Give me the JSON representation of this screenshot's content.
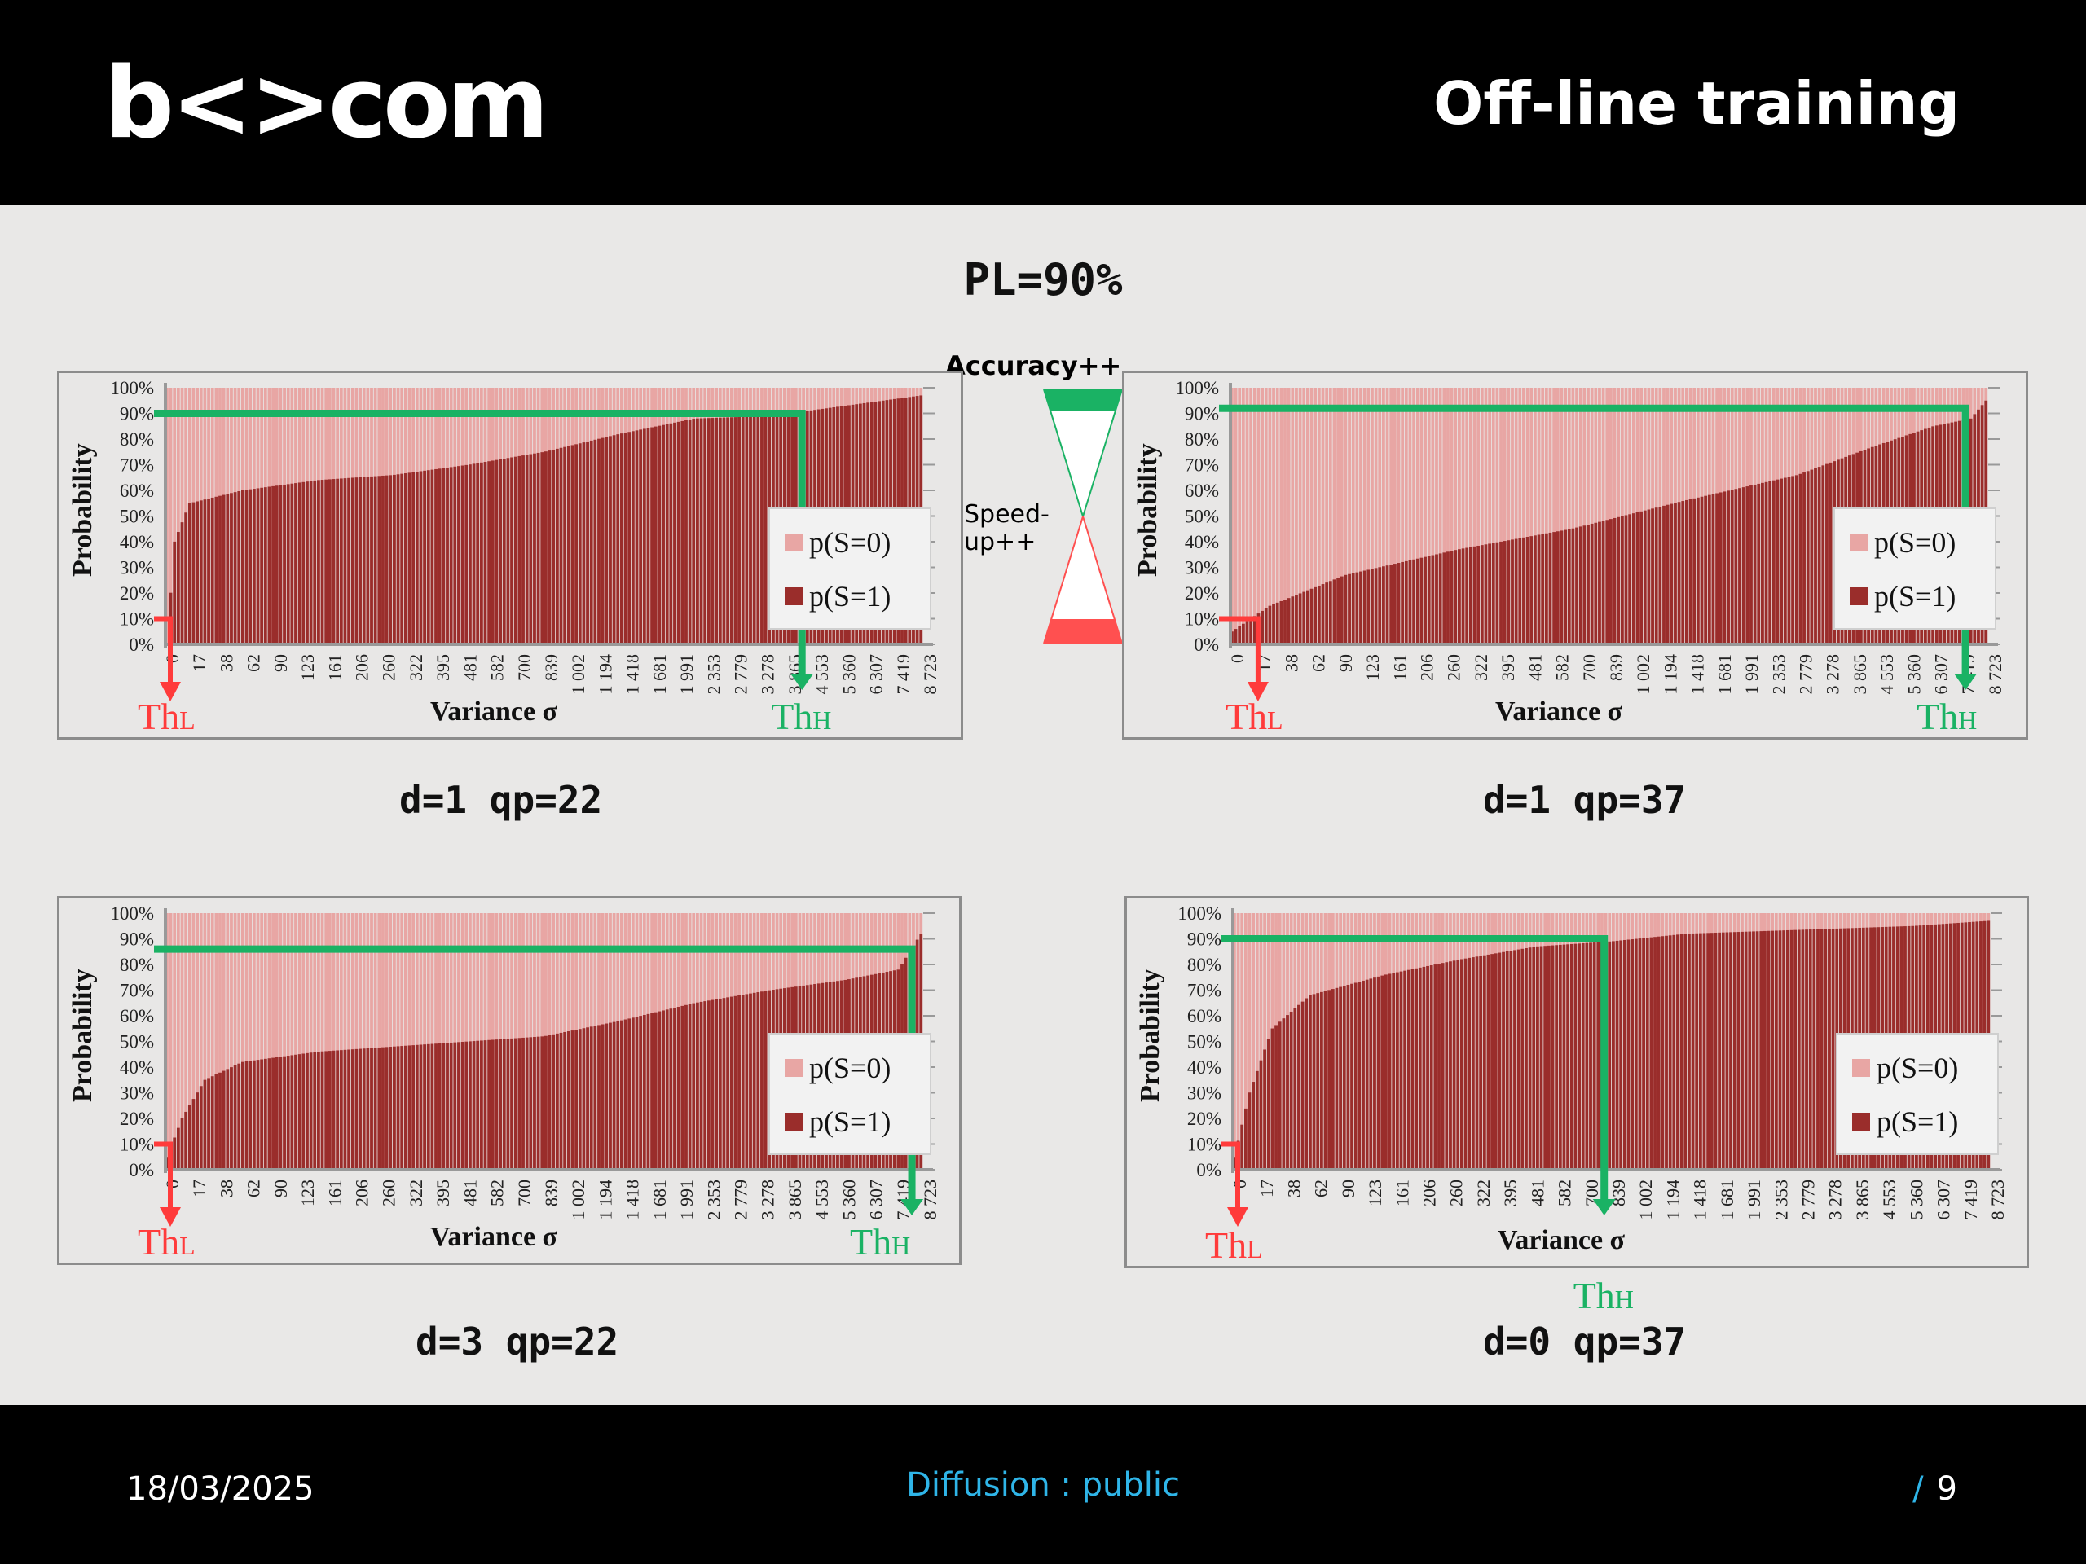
{
  "header": {
    "logo_text": "b<>com",
    "title": "Off-line training"
  },
  "footer": {
    "date": "18/03/2025",
    "diffusion": "Diffusion : public",
    "page_slash": "/",
    "page_number": "9"
  },
  "main": {
    "pl_label": "PL=90%",
    "accuracy_label": "Accuracy++",
    "speedup_label_1": "Speed-",
    "speedup_label_2": "up++"
  },
  "colors": {
    "p_s0": "#e8a6a4",
    "p_s1": "#9a2d2b",
    "thl": "#ff3b3b",
    "thh": "#1ab264",
    "header_bg": "#000000",
    "footer_link": "#2fb5e8"
  },
  "chart_data": [
    {
      "type": "bar",
      "caption": "d=1 qp=22",
      "xlabel": "Variance σ",
      "ylabel": "Probability",
      "y_ticks": [
        "100%",
        "90%",
        "80%",
        "70%",
        "60%",
        "50%",
        "40%",
        "30%",
        "20%",
        "10%",
        "0%"
      ],
      "x_ticks": [
        "0",
        "17",
        "38",
        "62",
        "90",
        "123",
        "161",
        "206",
        "260",
        "322",
        "395",
        "481",
        "582",
        "700",
        "839",
        "1 002",
        "1 194",
        "1 418",
        "1 681",
        "1 991",
        "2 353",
        "2 779",
        "3 278",
        "3 865",
        "4 553",
        "5 360",
        "6 307",
        "7 419",
        "8 723"
      ],
      "series": [
        {
          "name": "p(S=0)"
        },
        {
          "name": "p(S=1)"
        }
      ],
      "p_s1_curve": [
        [
          0,
          0
        ],
        [
          0.01,
          0.4
        ],
        [
          0.03,
          0.55
        ],
        [
          0.1,
          0.6
        ],
        [
          0.2,
          0.64
        ],
        [
          0.3,
          0.66
        ],
        [
          0.4,
          0.7
        ],
        [
          0.5,
          0.75
        ],
        [
          0.6,
          0.82
        ],
        [
          0.7,
          0.88
        ],
        [
          0.8,
          0.89
        ],
        [
          0.9,
          0.93
        ],
        [
          1.0,
          0.97
        ]
      ],
      "thl": "Th",
      "thl_sub": "L",
      "thh": "Th",
      "thh_sub": "H",
      "threshold_pl": 0.9,
      "thl_at": 0.0,
      "thh_at": 0.84,
      "legend": [
        "p(S=0)",
        "p(S=1)"
      ]
    },
    {
      "type": "bar",
      "caption": "d=1 qp=37",
      "xlabel": "Variance σ",
      "ylabel": "Probability",
      "y_ticks": [
        "100%",
        "90%",
        "80%",
        "70%",
        "60%",
        "50%",
        "40%",
        "30%",
        "20%",
        "10%",
        "0%"
      ],
      "x_ticks": [
        "0",
        "17",
        "38",
        "62",
        "90",
        "123",
        "161",
        "206",
        "260",
        "322",
        "395",
        "481",
        "582",
        "700",
        "839",
        "1 002",
        "1 194",
        "1 418",
        "1 681",
        "1 991",
        "2 353",
        "2 779",
        "3 278",
        "3 865",
        "4 553",
        "5 360",
        "6 307",
        "7 419",
        "8 723"
      ],
      "series": [
        {
          "name": "p(S=0)"
        },
        {
          "name": "p(S=1)"
        }
      ],
      "p_s1_curve": [
        [
          0,
          0.05
        ],
        [
          0.05,
          0.15
        ],
        [
          0.15,
          0.27
        ],
        [
          0.3,
          0.37
        ],
        [
          0.45,
          0.45
        ],
        [
          0.6,
          0.56
        ],
        [
          0.75,
          0.66
        ],
        [
          0.85,
          0.77
        ],
        [
          0.93,
          0.85
        ],
        [
          0.98,
          0.88
        ],
        [
          1.0,
          0.95
        ]
      ],
      "thl": "Th",
      "thl_sub": "L",
      "thh": "Th",
      "thh_sub": "H",
      "threshold_pl": 0.92,
      "thl_at": 0.03,
      "thh_at": 0.97,
      "legend": [
        "p(S=0)",
        "p(S=1)"
      ]
    },
    {
      "type": "bar",
      "caption": "d=3 qp=22",
      "xlabel": "Variance σ",
      "ylabel": "Probability",
      "y_ticks": [
        "100%",
        "90%",
        "80%",
        "70%",
        "60%",
        "50%",
        "40%",
        "30%",
        "20%",
        "10%",
        "0%"
      ],
      "x_ticks": [
        "0",
        "17",
        "38",
        "62",
        "90",
        "123",
        "161",
        "206",
        "260",
        "322",
        "395",
        "481",
        "582",
        "700",
        "839",
        "1 002",
        "1 194",
        "1 418",
        "1 681",
        "1 991",
        "2 353",
        "2 779",
        "3 278",
        "3 865",
        "4 553",
        "5 360",
        "6 307",
        "7 419",
        "8 723"
      ],
      "series": [
        {
          "name": "p(S=0)"
        },
        {
          "name": "p(S=1)"
        }
      ],
      "p_s1_curve": [
        [
          0,
          0.05
        ],
        [
          0.02,
          0.2
        ],
        [
          0.05,
          0.35
        ],
        [
          0.1,
          0.42
        ],
        [
          0.2,
          0.46
        ],
        [
          0.35,
          0.49
        ],
        [
          0.5,
          0.52
        ],
        [
          0.6,
          0.58
        ],
        [
          0.7,
          0.65
        ],
        [
          0.8,
          0.7
        ],
        [
          0.9,
          0.74
        ],
        [
          0.97,
          0.78
        ],
        [
          1.0,
          0.92
        ]
      ],
      "thl": "Th",
      "thl_sub": "L",
      "thh": "Th",
      "thh_sub": "H",
      "threshold_pl": 0.86,
      "thl_at": 0.0,
      "thh_at": 0.985,
      "legend": [
        "p(S=0)",
        "p(S=1)"
      ]
    },
    {
      "type": "bar",
      "caption": "d=0 qp=37",
      "xlabel": "Variance σ",
      "ylabel": "Probability",
      "y_ticks": [
        "100%",
        "90%",
        "80%",
        "70%",
        "60%",
        "50%",
        "40%",
        "30%",
        "20%",
        "10%",
        "0%"
      ],
      "x_ticks": [
        "0",
        "17",
        "38",
        "62",
        "90",
        "123",
        "161",
        "206",
        "260",
        "322",
        "395",
        "481",
        "582",
        "700",
        "839",
        "1 002",
        "1 194",
        "1 418",
        "1 681",
        "1 991",
        "2 353",
        "2 779",
        "3 278",
        "3 865",
        "4 553",
        "5 360",
        "6 307",
        "7 419",
        "8 723"
      ],
      "series": [
        {
          "name": "p(S=0)"
        },
        {
          "name": "p(S=1)"
        }
      ],
      "p_s1_curve": [
        [
          0,
          0.05
        ],
        [
          0.02,
          0.3
        ],
        [
          0.05,
          0.55
        ],
        [
          0.1,
          0.68
        ],
        [
          0.2,
          0.76
        ],
        [
          0.3,
          0.82
        ],
        [
          0.4,
          0.87
        ],
        [
          0.5,
          0.89
        ],
        [
          0.6,
          0.92
        ],
        [
          0.7,
          0.93
        ],
        [
          0.8,
          0.94
        ],
        [
          0.9,
          0.95
        ],
        [
          1.0,
          0.97
        ]
      ],
      "thl": "Th",
      "thl_sub": "L",
      "thh": "Th",
      "thh_sub": "H",
      "threshold_pl": 0.9,
      "thl_at": 0.0,
      "thh_at": 0.49,
      "legend": [
        "p(S=0)",
        "p(S=1)"
      ]
    }
  ]
}
